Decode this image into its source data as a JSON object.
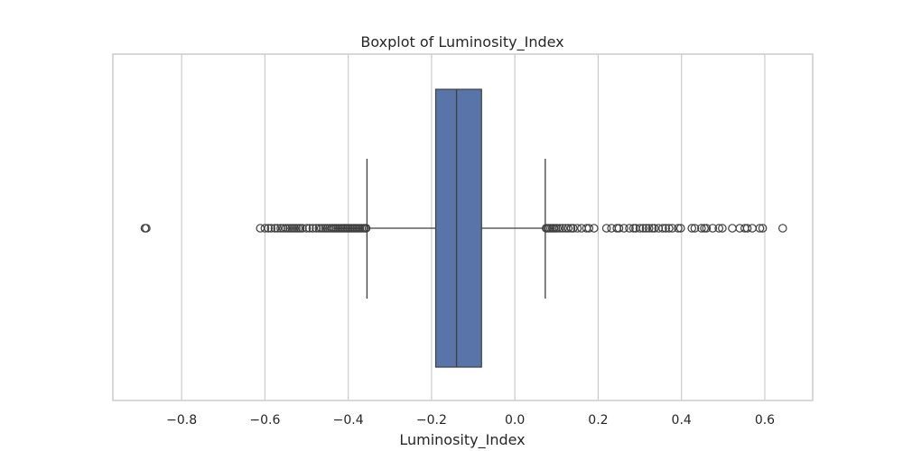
{
  "chart_data": {
    "type": "boxplot",
    "title": "Boxplot of Luminosity_Index",
    "xlabel": "Luminosity_Index",
    "ylabel": "",
    "xlim": [
      -0.965,
      0.715
    ],
    "xticks": [
      -0.8,
      -0.6,
      -0.4,
      -0.2,
      0.0,
      0.2,
      0.4,
      0.6
    ],
    "xtick_labels": [
      "−0.8",
      "−0.6",
      "−0.4",
      "−0.2",
      "0.0",
      "0.2",
      "0.4",
      "0.6"
    ],
    "grid": true,
    "orientation": "horizontal",
    "box_color": "#5874a8",
    "line_color": "#3f3f3f",
    "stats": {
      "whisker_low": -0.355,
      "q1": -0.19,
      "median": -0.14,
      "q3": -0.08,
      "whisker_high": 0.073
    },
    "outliers": [
      -0.888,
      -0.885,
      -0.611,
      -0.6,
      -0.592,
      -0.585,
      -0.576,
      -0.57,
      -0.562,
      -0.556,
      -0.55,
      -0.545,
      -0.54,
      -0.535,
      -0.53,
      -0.525,
      -0.52,
      -0.515,
      -0.51,
      -0.5,
      -0.493,
      -0.485,
      -0.477,
      -0.47,
      -0.465,
      -0.46,
      -0.455,
      -0.45,
      -0.445,
      -0.44,
      -0.436,
      -0.432,
      -0.428,
      -0.424,
      -0.42,
      -0.416,
      -0.412,
      -0.408,
      -0.404,
      -0.4,
      -0.396,
      -0.392,
      -0.388,
      -0.384,
      -0.38,
      -0.376,
      -0.372,
      -0.368,
      -0.364,
      -0.36,
      -0.357,
      0.075,
      0.078,
      0.082,
      0.086,
      0.09,
      0.094,
      0.098,
      0.102,
      0.108,
      0.115,
      0.122,
      0.128,
      0.135,
      0.14,
      0.15,
      0.16,
      0.172,
      0.178,
      0.19,
      0.22,
      0.232,
      0.245,
      0.25,
      0.262,
      0.275,
      0.285,
      0.29,
      0.3,
      0.308,
      0.315,
      0.322,
      0.33,
      0.335,
      0.345,
      0.355,
      0.362,
      0.37,
      0.378,
      0.392,
      0.398,
      0.425,
      0.432,
      0.448,
      0.455,
      0.46,
      0.475,
      0.49,
      0.498,
      0.522,
      0.54,
      0.552,
      0.558,
      0.57,
      0.588,
      0.595,
      0.643
    ]
  }
}
